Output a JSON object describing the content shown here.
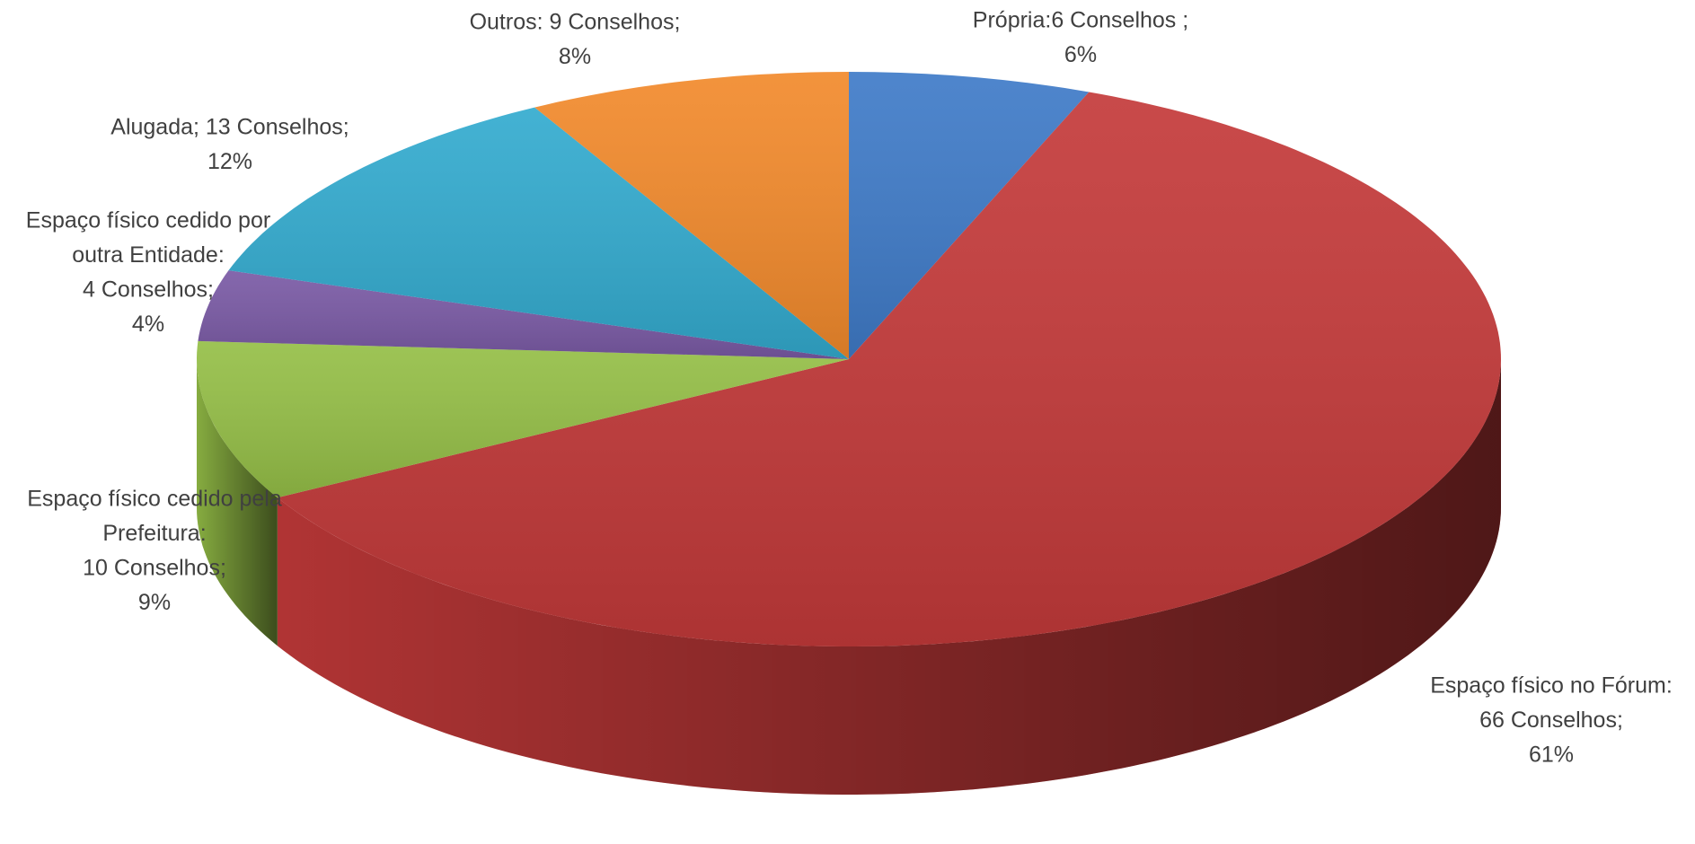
{
  "chart_data": {
    "type": "pie3d",
    "values": [
      6,
      61,
      9,
      4,
      12,
      8
    ],
    "value_labels": [
      [
        "Própria:6 Conselhos ;",
        "6%"
      ],
      [
        "Espaço físico no Fórum:",
        "66 Conselhos;",
        "61%"
      ],
      [
        "Espaço físico cedido pela",
        "Prefeitura:",
        "10 Conselhos;",
        "9%"
      ],
      [
        "Espaço físico cedido por",
        "outra Entidade:",
        "4 Conselhos;",
        "4%"
      ],
      [
        "Alugada; 13 Conselhos;",
        "12%"
      ],
      [
        "Outros: 9 Conselhos;",
        "8%"
      ]
    ],
    "colors": [
      "#3f7bc8",
      "#c43a3a",
      "#95bf47",
      "#7a5aa5",
      "#33abcf",
      "#f28a2c"
    ]
  }
}
